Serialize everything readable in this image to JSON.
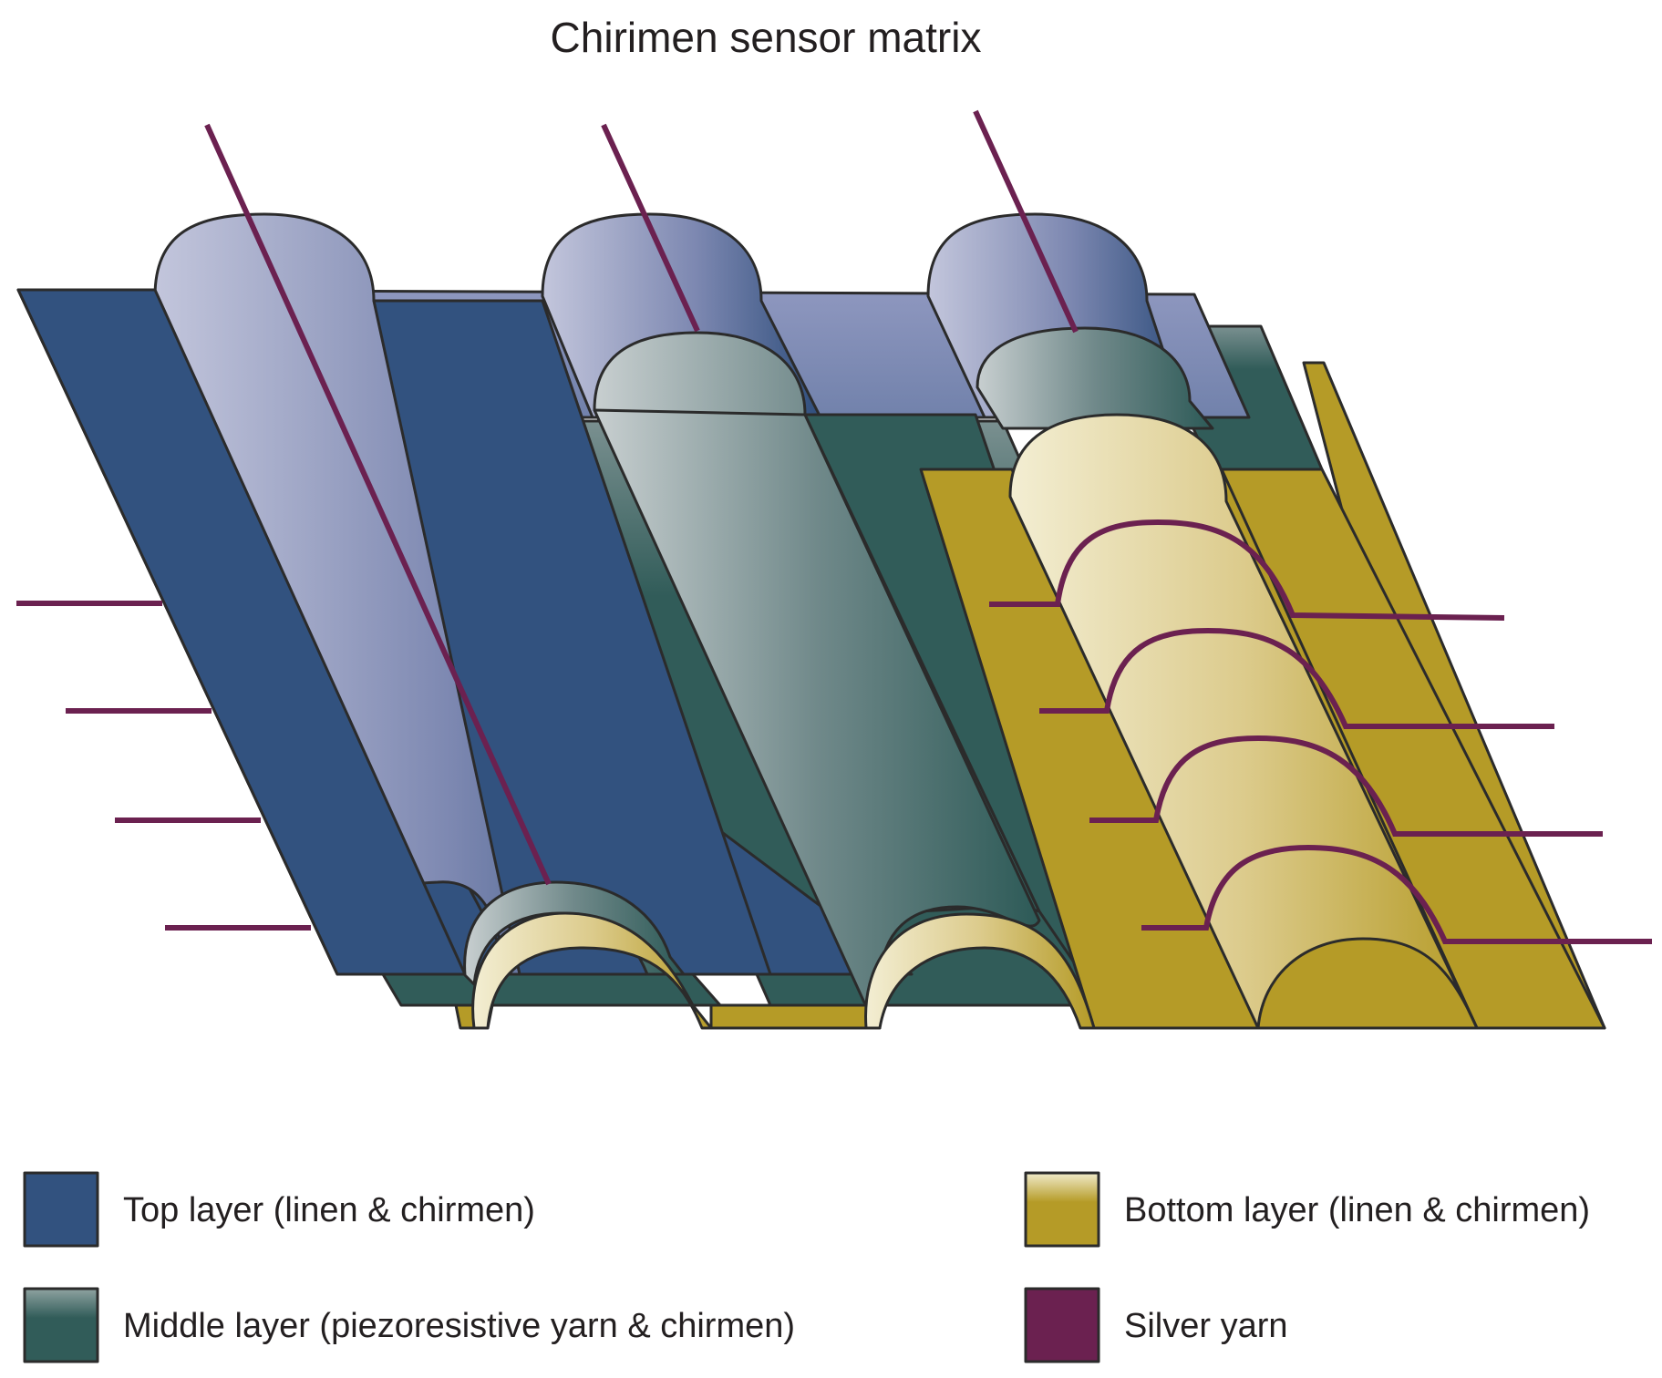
{
  "title": "Chirimen sensor matrix",
  "colors": {
    "top_layer": "#32527f",
    "top_layer_light": "#b4b9d6",
    "middle_layer": "#315c59",
    "middle_layer_light": "#c5ccce",
    "bottom_layer": "#b59b27",
    "bottom_layer_light": "#f1ebcb",
    "silver_yarn": "#6b2150",
    "outline": "#2b2b2b"
  },
  "legend": [
    {
      "label": "Top layer (linen & chirmen)",
      "color": "#32527f"
    },
    {
      "label": "Middle layer (piezoresistive yarn & chirmen)",
      "color": "#315c59"
    },
    {
      "label": "Bottom layer (linen & chirmen)",
      "color": "#b59b27"
    },
    {
      "label": "Silver yarn",
      "color": "#6b2150"
    }
  ]
}
